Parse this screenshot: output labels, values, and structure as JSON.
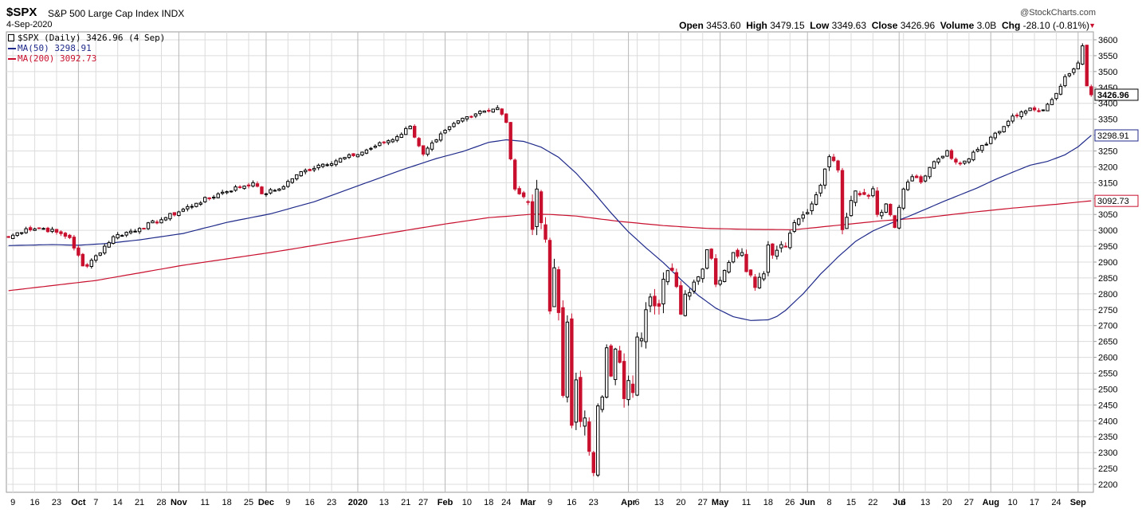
{
  "header": {
    "symbol": "$SPX",
    "name": "S&P 500 Large Cap Index",
    "exchange": "INDX",
    "date": "4-Sep-2020",
    "copyright": "@StockCharts.com",
    "open_label": "Open",
    "open": "3453.60",
    "high_label": "High",
    "high": "3479.15",
    "low_label": "Low",
    "low": "3349.63",
    "close_label": "Close",
    "close": "3426.96",
    "volume_label": "Volume",
    "volume": "3.0B",
    "chg_label": "Chg",
    "chg": "-28.10 (-0.81%)"
  },
  "legend": {
    "main": "$SPX (Daily) 3426.96 (4 Sep)",
    "ma50": "MA(50) 3298.91",
    "ma200": "MA(200) 3092.73"
  },
  "colors": {
    "up": "#000000",
    "down": "#c8102e",
    "ma50": "#1f2a8a",
    "ma200": "#c8102e",
    "grid": "#dcdcdc",
    "axis": "#9a9a9a"
  },
  "chart_data": {
    "type": "candlestick",
    "title": "$SPX S&P 500 Large Cap Index INDX",
    "ylim": [
      2175,
      3625
    ],
    "y_ticks": [
      2200,
      2250,
      2300,
      2350,
      2400,
      2450,
      2500,
      2550,
      2600,
      2650,
      2700,
      2750,
      2800,
      2850,
      2900,
      2950,
      3000,
      3050,
      3100,
      3150,
      3200,
      3250,
      3300,
      3350,
      3400,
      3450,
      3500,
      3550,
      3600
    ],
    "x_ticks": [
      {
        "i": 1,
        "label": "9",
        "bold": false
      },
      {
        "i": 6,
        "label": "16",
        "bold": false
      },
      {
        "i": 11,
        "label": "23",
        "bold": false
      },
      {
        "i": 16,
        "label": "Oct",
        "bold": true
      },
      {
        "i": 20,
        "label": "7",
        "bold": false
      },
      {
        "i": 25,
        "label": "14",
        "bold": false
      },
      {
        "i": 30,
        "label": "21",
        "bold": false
      },
      {
        "i": 35,
        "label": "28",
        "bold": false
      },
      {
        "i": 39,
        "label": "Nov",
        "bold": true
      },
      {
        "i": 45,
        "label": "11",
        "bold": false
      },
      {
        "i": 50,
        "label": "18",
        "bold": false
      },
      {
        "i": 55,
        "label": "25",
        "bold": false
      },
      {
        "i": 59,
        "label": "Dec",
        "bold": true
      },
      {
        "i": 64,
        "label": "9",
        "bold": false
      },
      {
        "i": 69,
        "label": "16",
        "bold": false
      },
      {
        "i": 74,
        "label": "23",
        "bold": false
      },
      {
        "i": 80,
        "label": "2020",
        "bold": true
      },
      {
        "i": 86,
        "label": "13",
        "bold": false
      },
      {
        "i": 91,
        "label": "21",
        "bold": false
      },
      {
        "i": 95,
        "label": "27",
        "bold": false
      },
      {
        "i": 100,
        "label": "Feb",
        "bold": true
      },
      {
        "i": 105,
        "label": "10",
        "bold": false
      },
      {
        "i": 110,
        "label": "18",
        "bold": false
      },
      {
        "i": 114,
        "label": "24",
        "bold": false
      },
      {
        "i": 119,
        "label": "Mar",
        "bold": true
      },
      {
        "i": 124,
        "label": "9",
        "bold": false
      },
      {
        "i": 129,
        "label": "16",
        "bold": false
      },
      {
        "i": 134,
        "label": "23",
        "bold": false
      },
      {
        "i": 142,
        "label": "Apr",
        "bold": true
      },
      {
        "i": 144,
        "label": "6",
        "bold": false
      },
      {
        "i": 149,
        "label": "13",
        "bold": false
      },
      {
        "i": 154,
        "label": "20",
        "bold": false
      },
      {
        "i": 159,
        "label": "27",
        "bold": false
      },
      {
        "i": 163,
        "label": "May",
        "bold": true
      },
      {
        "i": 169,
        "label": "11",
        "bold": false
      },
      {
        "i": 174,
        "label": "18",
        "bold": false
      },
      {
        "i": 179,
        "label": "26",
        "bold": false
      },
      {
        "i": 183,
        "label": "Jun",
        "bold": true
      },
      {
        "i": 188,
        "label": "8",
        "bold": false
      },
      {
        "i": 193,
        "label": "15",
        "bold": false
      },
      {
        "i": 198,
        "label": "22",
        "bold": false
      },
      {
        "i": 204,
        "label": "Jul",
        "bold": true
      },
      {
        "i": 205,
        "label": "6",
        "bold": false
      },
      {
        "i": 210,
        "label": "13",
        "bold": false
      },
      {
        "i": 215,
        "label": "20",
        "bold": false
      },
      {
        "i": 220,
        "label": "27",
        "bold": false
      },
      {
        "i": 225,
        "label": "Aug",
        "bold": true
      },
      {
        "i": 230,
        "label": "10",
        "bold": false
      },
      {
        "i": 235,
        "label": "17",
        "bold": false
      },
      {
        "i": 240,
        "label": "24",
        "bold": false
      },
      {
        "i": 245,
        "label": "Sep",
        "bold": true
      }
    ],
    "grid": true,
    "last_price_label": "3426.96",
    "ma_labels": [
      {
        "name": "MA(50)",
        "value": "3298.91"
      },
      {
        "name": "MA(200)",
        "value": "3092.73"
      }
    ],
    "anchors": [
      {
        "i": 0,
        "close": 2978
      },
      {
        "i": 4,
        "close": 3005
      },
      {
        "i": 8,
        "close": 3006
      },
      {
        "i": 11,
        "close": 2994
      },
      {
        "i": 14,
        "close": 2977
      },
      {
        "i": 17,
        "close": 2888
      },
      {
        "i": 18,
        "close": 2887
      },
      {
        "i": 20,
        "close": 2920
      },
      {
        "i": 24,
        "close": 2980
      },
      {
        "i": 30,
        "close": 3006
      },
      {
        "i": 36,
        "close": 3040
      },
      {
        "i": 43,
        "close": 3085
      },
      {
        "i": 49,
        "close": 3120
      },
      {
        "i": 56,
        "close": 3150
      },
      {
        "i": 58,
        "close": 3115
      },
      {
        "i": 62,
        "close": 3130
      },
      {
        "i": 66,
        "close": 3175
      },
      {
        "i": 71,
        "close": 3205
      },
      {
        "i": 79,
        "close": 3235
      },
      {
        "i": 84,
        "close": 3265
      },
      {
        "i": 89,
        "close": 3295
      },
      {
        "i": 92,
        "close": 3328
      },
      {
        "i": 95,
        "close": 3240
      },
      {
        "i": 98,
        "close": 3285
      },
      {
        "i": 103,
        "close": 3345
      },
      {
        "i": 108,
        "close": 3375
      },
      {
        "i": 112,
        "close": 3386
      },
      {
        "i": 114,
        "close": 3340
      },
      {
        "i": 115,
        "close": 3225
      },
      {
        "i": 116,
        "close": 3130
      },
      {
        "i": 117,
        "close": 3115
      },
      {
        "i": 119,
        "close": 3090
      },
      {
        "i": 120,
        "close": 3003
      },
      {
        "i": 121,
        "close": 3130
      },
      {
        "i": 122,
        "close": 3024
      },
      {
        "i": 123,
        "close": 2972
      },
      {
        "i": 124,
        "close": 2746
      },
      {
        "i": 125,
        "close": 2882
      },
      {
        "i": 126,
        "close": 2741
      },
      {
        "i": 127,
        "close": 2480
      },
      {
        "i": 128,
        "close": 2711
      },
      {
        "i": 129,
        "close": 2386
      },
      {
        "i": 130,
        "close": 2529
      },
      {
        "i": 131,
        "close": 2398
      },
      {
        "i": 132,
        "close": 2409
      },
      {
        "i": 133,
        "close": 2304
      },
      {
        "i": 134,
        "close": 2237
      },
      {
        "i": 135,
        "close": 2447
      },
      {
        "i": 136,
        "close": 2475
      },
      {
        "i": 137,
        "close": 2630
      },
      {
        "i": 138,
        "close": 2541
      },
      {
        "i": 139,
        "close": 2626
      },
      {
        "i": 140,
        "close": 2584
      },
      {
        "i": 141,
        "close": 2470
      },
      {
        "i": 142,
        "close": 2527
      },
      {
        "i": 143,
        "close": 2489
      },
      {
        "i": 144,
        "close": 2664
      },
      {
        "i": 145,
        "close": 2659
      },
      {
        "i": 146,
        "close": 2750
      },
      {
        "i": 147,
        "close": 2790
      },
      {
        "i": 149,
        "close": 2761
      },
      {
        "i": 150,
        "close": 2846
      },
      {
        "i": 152,
        "close": 2874
      },
      {
        "i": 153,
        "close": 2823
      },
      {
        "i": 154,
        "close": 2736
      },
      {
        "i": 155,
        "close": 2799
      },
      {
        "i": 157,
        "close": 2837
      },
      {
        "i": 159,
        "close": 2878
      },
      {
        "i": 160,
        "close": 2939
      },
      {
        "i": 161,
        "close": 2912
      },
      {
        "i": 162,
        "close": 2830
      },
      {
        "i": 163,
        "close": 2842
      },
      {
        "i": 166,
        "close": 2930
      },
      {
        "i": 168,
        "close": 2930
      },
      {
        "i": 169,
        "close": 2870
      },
      {
        "i": 171,
        "close": 2820
      },
      {
        "i": 172,
        "close": 2852
      },
      {
        "i": 173,
        "close": 2863
      },
      {
        "i": 174,
        "close": 2954
      },
      {
        "i": 175,
        "close": 2922
      },
      {
        "i": 177,
        "close": 2955
      },
      {
        "i": 178,
        "close": 2948
      },
      {
        "i": 179,
        "close": 2991
      },
      {
        "i": 181,
        "close": 3036
      },
      {
        "i": 183,
        "close": 3056
      },
      {
        "i": 185,
        "close": 3112
      },
      {
        "i": 187,
        "close": 3193
      },
      {
        "i": 188,
        "close": 3232
      },
      {
        "i": 190,
        "close": 3190
      },
      {
        "i": 191,
        "close": 3002
      },
      {
        "i": 192,
        "close": 3041
      },
      {
        "i": 194,
        "close": 3124
      },
      {
        "i": 196,
        "close": 3113
      },
      {
        "i": 198,
        "close": 3131
      },
      {
        "i": 199,
        "close": 3050
      },
      {
        "i": 201,
        "close": 3083
      },
      {
        "i": 203,
        "close": 3009
      },
      {
        "i": 205,
        "close": 3130
      },
      {
        "i": 207,
        "close": 3169
      },
      {
        "i": 209,
        "close": 3152
      },
      {
        "i": 211,
        "close": 3198
      },
      {
        "i": 213,
        "close": 3225
      },
      {
        "i": 215,
        "close": 3251
      },
      {
        "i": 217,
        "close": 3215
      },
      {
        "i": 219,
        "close": 3218
      },
      {
        "i": 221,
        "close": 3246
      },
      {
        "i": 224,
        "close": 3271
      },
      {
        "i": 226,
        "close": 3306
      },
      {
        "i": 228,
        "close": 3327
      },
      {
        "i": 230,
        "close": 3360
      },
      {
        "i": 232,
        "close": 3373
      },
      {
        "i": 234,
        "close": 3385
      },
      {
        "i": 236,
        "close": 3374
      },
      {
        "i": 238,
        "close": 3397
      },
      {
        "i": 240,
        "close": 3431
      },
      {
        "i": 242,
        "close": 3484
      },
      {
        "i": 244,
        "close": 3508
      },
      {
        "i": 245,
        "close": 3527
      },
      {
        "i": 246,
        "close": 3581
      },
      {
        "i": 247,
        "close": 3455
      },
      {
        "i": 248,
        "close": 3427
      }
    ],
    "ma50": [
      [
        0,
        2952
      ],
      [
        10,
        2955
      ],
      [
        16,
        2953
      ],
      [
        22,
        2958
      ],
      [
        30,
        2970
      ],
      [
        40,
        2990
      ],
      [
        50,
        3025
      ],
      [
        60,
        3052
      ],
      [
        70,
        3090
      ],
      [
        80,
        3140
      ],
      [
        90,
        3190
      ],
      [
        98,
        3226
      ],
      [
        104,
        3248
      ],
      [
        110,
        3277
      ],
      [
        114,
        3285
      ],
      [
        118,
        3280
      ],
      [
        122,
        3262
      ],
      [
        126,
        3230
      ],
      [
        130,
        3180
      ],
      [
        134,
        3120
      ],
      [
        138,
        3055
      ],
      [
        142,
        2995
      ],
      [
        146,
        2945
      ],
      [
        150,
        2898
      ],
      [
        154,
        2845
      ],
      [
        158,
        2795
      ],
      [
        162,
        2755
      ],
      [
        166,
        2728
      ],
      [
        170,
        2716
      ],
      [
        174,
        2718
      ],
      [
        176,
        2729
      ],
      [
        178,
        2748
      ],
      [
        182,
        2800
      ],
      [
        186,
        2862
      ],
      [
        190,
        2916
      ],
      [
        194,
        2965
      ],
      [
        198,
        2998
      ],
      [
        202,
        3022
      ],
      [
        206,
        3043
      ],
      [
        210,
        3066
      ],
      [
        214,
        3090
      ],
      [
        218,
        3112
      ],
      [
        222,
        3134
      ],
      [
        226,
        3160
      ],
      [
        230,
        3183
      ],
      [
        234,
        3205
      ],
      [
        238,
        3217
      ],
      [
        242,
        3238
      ],
      [
        245,
        3263
      ],
      [
        248,
        3299
      ]
    ],
    "ma200": [
      [
        0,
        2810
      ],
      [
        20,
        2842
      ],
      [
        40,
        2890
      ],
      [
        60,
        2930
      ],
      [
        80,
        2975
      ],
      [
        100,
        3020
      ],
      [
        110,
        3040
      ],
      [
        115,
        3045
      ],
      [
        120,
        3051
      ],
      [
        124,
        3050
      ],
      [
        130,
        3045
      ],
      [
        140,
        3028
      ],
      [
        150,
        3015
      ],
      [
        160,
        3006
      ],
      [
        170,
        3003
      ],
      [
        180,
        3002
      ],
      [
        190,
        3016
      ],
      [
        200,
        3030
      ],
      [
        210,
        3040
      ],
      [
        220,
        3056
      ],
      [
        230,
        3070
      ],
      [
        240,
        3082
      ],
      [
        248,
        3093
      ]
    ]
  }
}
